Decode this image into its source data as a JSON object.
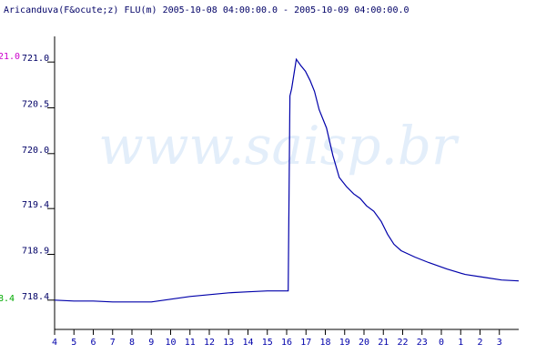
{
  "chart_data": {
    "type": "line",
    "title": "Aricanduva(F&ocute;z) FLU(m) 2005-10-08 04:00:00.0 - 2005-10-09 04:00:00.0",
    "watermark": "www.saisp.br",
    "max_label": "21.0",
    "max_value": 721.0,
    "max_color": "#cc00cc",
    "min_label": "8.4",
    "min_value": 718.4,
    "min_color": "#00aa00",
    "color": "#0000aa",
    "xlim": [
      4,
      28
    ],
    "ylim": [
      718.08,
      721.28
    ],
    "xticks": [
      4,
      5,
      6,
      7,
      8,
      9,
      10,
      11,
      12,
      13,
      14,
      15,
      16,
      17,
      18,
      19,
      20,
      21,
      22,
      23,
      {
        "value": 24,
        "label": "0"
      },
      {
        "value": 25,
        "label": "1"
      },
      {
        "value": 26,
        "label": "2"
      },
      {
        "value": 27,
        "label": "3"
      }
    ],
    "yticks": [
      {
        "value": 718.4,
        "label": "718.4"
      },
      {
        "value": 718.9,
        "label": "718.9"
      },
      {
        "value": 719.4,
        "label": "719.4"
      },
      {
        "value": 720.0,
        "label": "720.0"
      },
      {
        "value": 720.5,
        "label": "720.5"
      },
      {
        "value": 721.0,
        "label": "721.0"
      }
    ],
    "x": [
      4,
      5,
      6,
      7,
      8,
      9,
      10,
      11,
      12,
      13,
      14,
      15,
      16,
      16.08,
      16.17,
      16.26,
      16.5,
      16.74,
      16.97,
      17.21,
      17.44,
      17.68,
      18.06,
      18.39,
      18.72,
      19.09,
      19.47,
      19.8,
      20.13,
      20.51,
      20.89,
      21.22,
      21.55,
      21.92,
      22.63,
      23.34,
      24.28,
      25.23,
      26.17,
      27.11,
      28.0
    ],
    "values": [
      718.4,
      718.39,
      718.39,
      718.38,
      718.38,
      718.38,
      718.41,
      718.44,
      718.46,
      718.48,
      718.49,
      718.5,
      718.5,
      718.5,
      720.63,
      720.71,
      721.03,
      720.96,
      720.9,
      720.8,
      720.68,
      720.48,
      720.28,
      719.98,
      719.74,
      719.64,
      719.56,
      719.51,
      719.43,
      719.37,
      719.26,
      719.12,
      719.01,
      718.94,
      718.87,
      718.81,
      718.74,
      718.68,
      718.65,
      718.62,
      718.61
    ]
  }
}
